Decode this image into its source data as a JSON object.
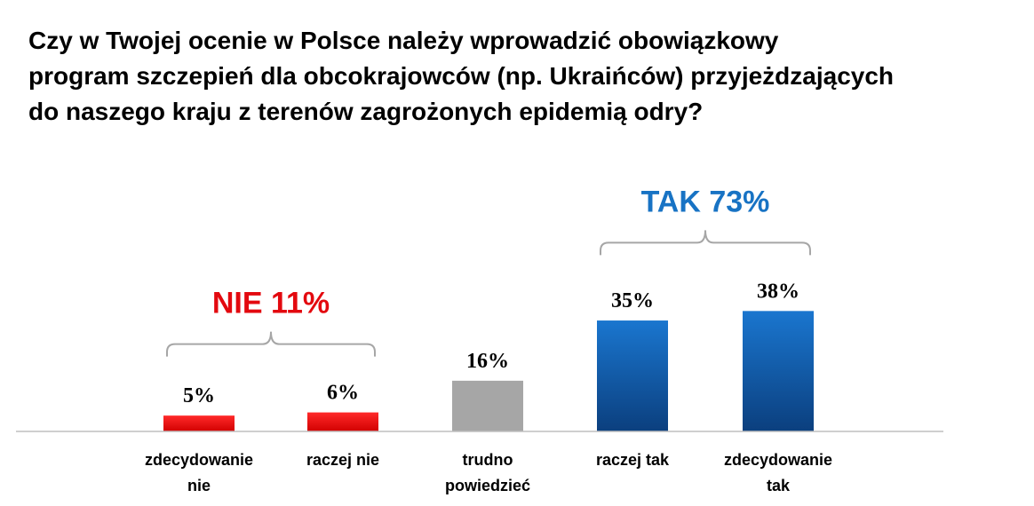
{
  "title_lines": [
    "Czy w Twojej ocenie w Polsce należy wprowadzić obowiązkowy",
    "program szczepień dla obcokrajowców (np. Ukraińców) przyjeżdzających",
    "do naszego kraju z terenów zagrożonych epidemią odry?"
  ],
  "chart_data": {
    "type": "bar",
    "title": "Czy w Twojej ocenie w Polsce należy wprowadzić obowiązkowy program szczepień dla obcokrajowców (np. Ukraińców) przyjeżdzających do naszego kraju z terenów zagrożonych epidemią odry?",
    "categories": [
      [
        "zdecydowanie",
        "nie"
      ],
      [
        "raczej nie"
      ],
      [
        "trudno",
        "powiedzieć"
      ],
      [
        "raczej tak"
      ],
      [
        "zdecydowanie",
        "tak"
      ]
    ],
    "values": [
      5,
      6,
      16,
      35,
      38
    ],
    "value_labels": [
      "5%",
      "6%",
      "16%",
      "35%",
      "38%"
    ],
    "colors": [
      "#e10e0e",
      "#e10e0e",
      "#a6a6a6",
      "#1565b8",
      "#1565b8"
    ],
    "groups": [
      {
        "label": "NIE 11%",
        "color": "#e3090f",
        "from": 0,
        "to": 1
      },
      {
        "label": "TAK 73%",
        "color": "#1873c4",
        "from": 3,
        "to": 4
      }
    ],
    "ylim": [
      0,
      40
    ],
    "xlabel": "",
    "ylabel": "",
    "grid": false,
    "legend": "none"
  }
}
